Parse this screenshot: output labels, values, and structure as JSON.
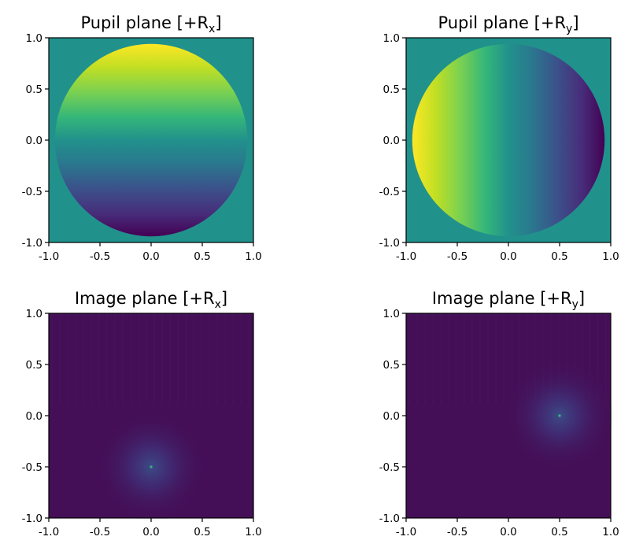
{
  "chart_data": [
    {
      "type": "heatmap",
      "title": "Pupil plane [+R",
      "title_sub": "x",
      "title_end": "]",
      "xlim": [
        -1.0,
        1.0
      ],
      "ylim": [
        -1.0,
        1.0
      ],
      "x_ticks": [
        "-1.0",
        "-0.5",
        "0.0",
        "0.5",
        "1.0"
      ],
      "y_ticks": [
        "1.0",
        "0.5",
        "0.0",
        "-0.5",
        "-1.0"
      ],
      "colormap": "viridis",
      "background_color": "#21918c",
      "content": {
        "kind": "pupil_disk",
        "radius": 0.94,
        "gradient_direction": "y",
        "high_side": "top"
      }
    },
    {
      "type": "heatmap",
      "title": "Pupil plane [+R",
      "title_sub": "y",
      "title_end": "]",
      "xlim": [
        -1.0,
        1.0
      ],
      "ylim": [
        -1.0,
        1.0
      ],
      "x_ticks": [
        "-1.0",
        "-0.5",
        "0.0",
        "0.5",
        "1.0"
      ],
      "y_ticks": [
        "1.0",
        "0.5",
        "0.0",
        "-0.5",
        "-1.0"
      ],
      "colormap": "viridis",
      "background_color": "#21918c",
      "content": {
        "kind": "pupil_disk",
        "radius": 0.94,
        "gradient_direction": "x",
        "high_side": "left"
      }
    },
    {
      "type": "heatmap",
      "title": "Image plane [+R",
      "title_sub": "x",
      "title_end": "]",
      "xlim": [
        -1.0,
        1.0
      ],
      "ylim": [
        -1.0,
        1.0
      ],
      "x_ticks": [
        "-1.0",
        "-0.5",
        "0.0",
        "0.5",
        "1.0"
      ],
      "y_ticks": [
        "1.0",
        "0.5",
        "0.0",
        "-0.5",
        "-1.0"
      ],
      "colormap": "viridis",
      "background_color": "#440f57",
      "content": {
        "kind": "psf_spot",
        "center": [
          0.0,
          -0.5
        ]
      }
    },
    {
      "type": "heatmap",
      "title": "Image plane [+R",
      "title_sub": "y",
      "title_end": "]",
      "xlim": [
        -1.0,
        1.0
      ],
      "ylim": [
        -1.0,
        1.0
      ],
      "x_ticks": [
        "-1.0",
        "-0.5",
        "0.0",
        "0.5",
        "1.0"
      ],
      "y_ticks": [
        "1.0",
        "0.5",
        "0.0",
        "-0.5",
        "-1.0"
      ],
      "colormap": "viridis",
      "background_color": "#440f57",
      "content": {
        "kind": "psf_spot",
        "center": [
          0.5,
          0.0
        ]
      }
    }
  ]
}
